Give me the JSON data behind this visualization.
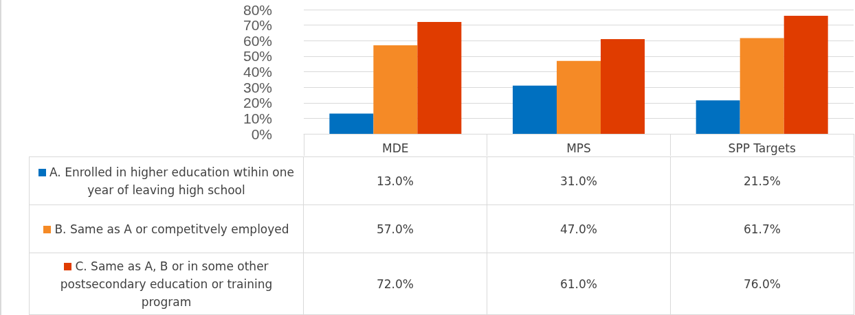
{
  "chart_data": {
    "type": "bar",
    "categories": [
      "MDE",
      "MPS",
      "SPP Targets"
    ],
    "series": [
      {
        "name": "A. Enrolled in higher education wtihin one year of leaving high school",
        "color": "#0070c0",
        "values": [
          13.0,
          31.0,
          21.5
        ],
        "value_labels": [
          "13.0%",
          "31.0%",
          "21.5%"
        ]
      },
      {
        "name": "B. Same as A  or competitvely employed",
        "color": "#f58a26",
        "values": [
          57.0,
          47.0,
          61.7
        ],
        "value_labels": [
          "57.0%",
          "47.0%",
          "61.7%"
        ]
      },
      {
        "name": "C. Same as A, B or in some other postsecondary education or training program",
        "color": "#e03c00",
        "values": [
          72.0,
          61.0,
          76.0
        ],
        "value_labels": [
          "72.0%",
          "61.0%",
          "76.0%"
        ]
      }
    ],
    "ylim": [
      0,
      80
    ],
    "yticks": [
      {
        "value": 0,
        "label": "0%"
      },
      {
        "value": 10,
        "label": "10%"
      },
      {
        "value": 20,
        "label": "20%"
      },
      {
        "value": 30,
        "label": "30%"
      },
      {
        "value": 40,
        "label": "40%"
      },
      {
        "value": 50,
        "label": "50%"
      },
      {
        "value": 60,
        "label": "60%"
      },
      {
        "value": 70,
        "label": "70%"
      },
      {
        "value": 80,
        "label": "80%"
      }
    ],
    "grid": "y",
    "legend": "bottom"
  }
}
